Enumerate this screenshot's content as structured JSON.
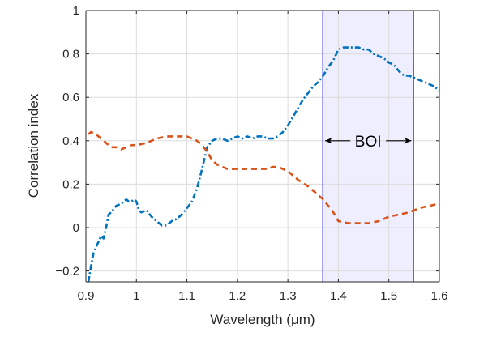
{
  "chart_data": {
    "type": "line",
    "title": "",
    "xlabel": "Wavelength (μm)",
    "ylabel": "Correlation index",
    "xlim": [
      0.9,
      1.6
    ],
    "ylim": [
      -0.25,
      1.0
    ],
    "xticks": [
      0.9,
      1.0,
      1.1,
      1.2,
      1.3,
      1.4,
      1.5,
      1.6
    ],
    "xtick_labels": [
      "0.9",
      "1",
      "1.1",
      "1.2",
      "1.3",
      "1.4",
      "1.5",
      "1.6"
    ],
    "yticks": [
      -0.2,
      0,
      0.2,
      0.4,
      0.6,
      0.8,
      1.0
    ],
    "ytick_labels": [
      "−0.2",
      "0",
      "0.2",
      "0.4",
      "0.6",
      "0.8",
      "1"
    ],
    "grid": true,
    "legend": null,
    "series": [
      {
        "name": "blue dash-dot",
        "color": "#0072BD",
        "style": "dashdot",
        "x": [
          0.905,
          0.91,
          0.915,
          0.92,
          0.93,
          0.935,
          0.94,
          0.945,
          0.95,
          0.96,
          0.97,
          0.98,
          0.985,
          0.99,
          0.995,
          1.0,
          1.005,
          1.01,
          1.02,
          1.03,
          1.04,
          1.05,
          1.06,
          1.07,
          1.08,
          1.09,
          1.1,
          1.11,
          1.12,
          1.13,
          1.14,
          1.15,
          1.16,
          1.17,
          1.18,
          1.19,
          1.2,
          1.21,
          1.22,
          1.23,
          1.24,
          1.25,
          1.26,
          1.27,
          1.28,
          1.29,
          1.3,
          1.31,
          1.32,
          1.33,
          1.34,
          1.35,
          1.36,
          1.37,
          1.38,
          1.39,
          1.4,
          1.41,
          1.42,
          1.43,
          1.44,
          1.45,
          1.46,
          1.47,
          1.48,
          1.49,
          1.5,
          1.51,
          1.52,
          1.53,
          1.54,
          1.55,
          1.56,
          1.57,
          1.58,
          1.59,
          1.6
        ],
        "y": [
          -0.25,
          -0.18,
          -0.12,
          -0.09,
          -0.04,
          -0.05,
          0.0,
          0.06,
          0.07,
          0.1,
          0.11,
          0.13,
          0.12,
          0.12,
          0.13,
          0.12,
          0.08,
          0.07,
          0.08,
          0.05,
          0.03,
          0.01,
          0.01,
          0.03,
          0.04,
          0.06,
          0.09,
          0.12,
          0.18,
          0.27,
          0.37,
          0.4,
          0.41,
          0.41,
          0.4,
          0.41,
          0.42,
          0.41,
          0.42,
          0.41,
          0.42,
          0.42,
          0.41,
          0.41,
          0.42,
          0.44,
          0.47,
          0.51,
          0.55,
          0.59,
          0.62,
          0.65,
          0.67,
          0.7,
          0.74,
          0.77,
          0.82,
          0.83,
          0.83,
          0.83,
          0.83,
          0.82,
          0.82,
          0.8,
          0.79,
          0.78,
          0.76,
          0.75,
          0.72,
          0.7,
          0.7,
          0.69,
          0.68,
          0.67,
          0.66,
          0.65,
          0.63
        ]
      },
      {
        "name": "orange dashed",
        "color": "#D95319",
        "style": "dashed",
        "x": [
          0.905,
          0.91,
          0.92,
          0.93,
          0.94,
          0.95,
          0.96,
          0.97,
          0.98,
          0.99,
          1.0,
          1.02,
          1.04,
          1.06,
          1.08,
          1.1,
          1.11,
          1.12,
          1.13,
          1.14,
          1.15,
          1.16,
          1.17,
          1.18,
          1.2,
          1.22,
          1.24,
          1.26,
          1.27,
          1.28,
          1.3,
          1.32,
          1.34,
          1.36,
          1.37,
          1.38,
          1.39,
          1.4,
          1.42,
          1.44,
          1.46,
          1.48,
          1.5,
          1.52,
          1.54,
          1.55,
          1.56,
          1.58,
          1.6
        ],
        "y": [
          0.43,
          0.44,
          0.43,
          0.41,
          0.39,
          0.37,
          0.37,
          0.36,
          0.37,
          0.38,
          0.38,
          0.39,
          0.41,
          0.42,
          0.42,
          0.42,
          0.41,
          0.4,
          0.38,
          0.35,
          0.31,
          0.29,
          0.28,
          0.27,
          0.27,
          0.27,
          0.27,
          0.27,
          0.28,
          0.28,
          0.26,
          0.22,
          0.19,
          0.15,
          0.13,
          0.1,
          0.07,
          0.03,
          0.02,
          0.02,
          0.02,
          0.03,
          0.05,
          0.06,
          0.07,
          0.08,
          0.09,
          0.1,
          0.11
        ]
      }
    ],
    "annotations": [
      {
        "type": "band",
        "label": "BOI",
        "x_start": 1.369,
        "x_end": 1.549,
        "fill": "#EEEEFF",
        "edge": "#4040FF"
      },
      {
        "type": "double-arrow",
        "text": "BOI",
        "x_start": 1.372,
        "x_end": 1.546,
        "y": 0.4
      }
    ]
  }
}
